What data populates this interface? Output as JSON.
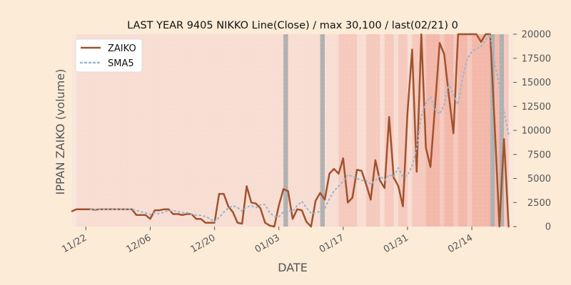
{
  "chart_data": {
    "type": "line",
    "title": "LAST YEAR 9405 NIKKO Line(Close) / max 30,100 / last(02/21) 0",
    "xlabel": "DATE",
    "ylabel": "IPPAN ZAIKO (volume)",
    "ylim": [
      0,
      20000
    ],
    "yticks": [
      0,
      2500,
      5000,
      7500,
      10000,
      12500,
      15000,
      17500,
      20000
    ],
    "ytick_labels": [
      "0",
      "2500",
      "5000",
      "7500",
      "10000",
      "12500",
      "15000",
      "17500",
      "20000"
    ],
    "xtick_labels": [
      "11/22",
      "12/06",
      "12/20",
      "01/03",
      "01/17",
      "01/31",
      "02/14"
    ],
    "xtick_positions": [
      3,
      17,
      31,
      45,
      59,
      73,
      87
    ],
    "xlim": [
      0,
      96
    ],
    "legend_position": "upper-left",
    "grid": false,
    "colors": {
      "ZAIKO": "#a0522d",
      "SMA5": "#9ab8d0",
      "background": "#fbebd7",
      "band_light": "#f8ddd3",
      "band_medium": "#f5c9bd",
      "band_strong": "#f3b8aa",
      "band_gray": "#b0b0b0"
    },
    "bands": [
      {
        "start": 1,
        "end": 46,
        "level": "light"
      },
      {
        "start": 46,
        "end": 47,
        "level": "gray"
      },
      {
        "start": 47,
        "end": 54,
        "level": "light"
      },
      {
        "start": 54,
        "end": 55,
        "level": "gray"
      },
      {
        "start": 55,
        "end": 58,
        "level": "light"
      },
      {
        "start": 58,
        "end": 62,
        "level": "medium"
      },
      {
        "start": 62,
        "end": 64,
        "level": "light"
      },
      {
        "start": 64,
        "end": 67,
        "level": "medium"
      },
      {
        "start": 67,
        "end": 68,
        "level": "light"
      },
      {
        "start": 68,
        "end": 70,
        "level": "medium"
      },
      {
        "start": 70,
        "end": 71,
        "level": "light"
      },
      {
        "start": 71,
        "end": 73,
        "level": "medium"
      },
      {
        "start": 73,
        "end": 74,
        "level": "light"
      },
      {
        "start": 74,
        "end": 77,
        "level": "medium"
      },
      {
        "start": 77,
        "end": 80,
        "level": "strong"
      },
      {
        "start": 80,
        "end": 81,
        "level": "medium"
      },
      {
        "start": 81,
        "end": 83,
        "level": "strong"
      },
      {
        "start": 83,
        "end": 84,
        "level": "medium"
      },
      {
        "start": 84,
        "end": 86,
        "level": "strong"
      },
      {
        "start": 86,
        "end": 87,
        "level": "medium"
      },
      {
        "start": 87,
        "end": 91,
        "level": "strong"
      },
      {
        "start": 91,
        "end": 92,
        "level": "gray"
      },
      {
        "start": 92,
        "end": 93,
        "level": "strong"
      },
      {
        "start": 93,
        "end": 94,
        "level": "gray"
      },
      {
        "start": 94,
        "end": 95,
        "level": "medium"
      }
    ],
    "x": [
      0,
      1,
      2,
      3,
      4,
      5,
      6,
      7,
      8,
      9,
      10,
      11,
      12,
      13,
      14,
      15,
      16,
      17,
      18,
      19,
      20,
      21,
      22,
      23,
      24,
      25,
      26,
      27,
      28,
      29,
      30,
      31,
      32,
      33,
      34,
      35,
      36,
      37,
      38,
      39,
      40,
      41,
      42,
      43,
      44,
      45,
      46,
      47,
      48,
      49,
      50,
      51,
      52,
      53,
      54,
      55,
      56,
      57,
      58,
      59,
      60,
      61,
      62,
      63,
      64,
      65,
      66,
      67,
      68,
      69,
      70,
      71,
      72,
      73,
      74,
      75,
      76,
      77,
      78,
      79,
      80,
      81,
      82,
      83,
      84,
      85,
      86,
      87,
      88,
      89,
      90,
      91,
      92,
      93,
      94,
      95
    ],
    "series": [
      {
        "name": "ZAIKO",
        "style": "solid",
        "values": [
          1600,
          1800,
          1800,
          1800,
          1800,
          1750,
          1800,
          1800,
          1800,
          1800,
          1800,
          1800,
          1800,
          1800,
          1200,
          1200,
          1200,
          800,
          1700,
          1700,
          1800,
          1800,
          1300,
          1300,
          1200,
          1300,
          1300,
          800,
          800,
          400,
          400,
          400,
          3400,
          3400,
          2100,
          1500,
          400,
          300,
          4200,
          2500,
          2400,
          1900,
          400,
          100,
          0,
          2200,
          3900,
          3700,
          800,
          1800,
          1700,
          500,
          0,
          2700,
          3500,
          2800,
          5500,
          6000,
          5500,
          7100,
          2500,
          3000,
          5900,
          5800,
          4400,
          2800,
          6900,
          4800,
          4000,
          11400,
          5100,
          4200,
          2100,
          11800,
          18400,
          5700,
          20000,
          8200,
          6200,
          12600,
          19100,
          17900,
          13600,
          9700,
          20000,
          20000,
          20000,
          20000,
          20000,
          19200,
          20000,
          20000,
          10200,
          0,
          9100,
          0
        ],
        "_note_values": "values above 20000 clipped at plot top"
      },
      {
        "name": "SMA5",
        "style": "dotted",
        "values": [
          null,
          null,
          null,
          null,
          1760,
          1790,
          1790,
          1790,
          1790,
          1790,
          1800,
          1800,
          1800,
          1800,
          1680,
          1560,
          1440,
          1240,
          1420,
          1320,
          1520,
          1640,
          1660,
          1560,
          1460,
          1460,
          1320,
          1180,
          1180,
          1040,
          840,
          480,
          960,
          1480,
          1920,
          2160,
          1980,
          1600,
          2040,
          2160,
          1960,
          2260,
          2280,
          1460,
          1040,
          1020,
          1540,
          1660,
          1600,
          2180,
          2620,
          1980,
          1400,
          1400,
          1600,
          1880,
          2900,
          3700,
          4200,
          4700,
          5400,
          5200,
          5000,
          4800,
          4800,
          4400,
          4800,
          5300,
          4800,
          5400,
          5200,
          6100,
          5200,
          5300,
          6300,
          8200,
          11500,
          12800,
          13500,
          12200,
          11700,
          12700,
          14900,
          13700,
          12700,
          15500,
          17400,
          18200,
          18500,
          18700,
          19400,
          20000,
          17000,
          14700,
          12000,
          9600
        ]
      }
    ]
  }
}
